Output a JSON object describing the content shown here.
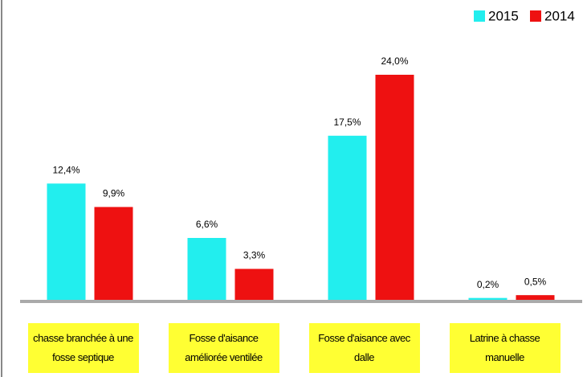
{
  "chart_data": {
    "type": "bar",
    "categories": [
      "chasse branchée à une fosse septique",
      "Fosse d'aisance améliorée ventilée",
      "Fosse d'aisance avec dalle",
      "Latrine à chasse manuelle"
    ],
    "series": [
      {
        "name": "2015",
        "color": "#22eeee",
        "values": [
          12.4,
          6.6,
          17.5,
          0.2
        ],
        "value_labels": [
          "12,4%",
          "6,6%",
          "17,5%",
          "0,2%"
        ]
      },
      {
        "name": "2014",
        "color": "#ee1111",
        "values": [
          9.9,
          3.3,
          24.0,
          0.5
        ],
        "value_labels": [
          "9,9%",
          "3,3%",
          "24,0%",
          "0,5%"
        ]
      }
    ],
    "ylim": [
      0,
      24
    ],
    "legend": "top-right"
  }
}
